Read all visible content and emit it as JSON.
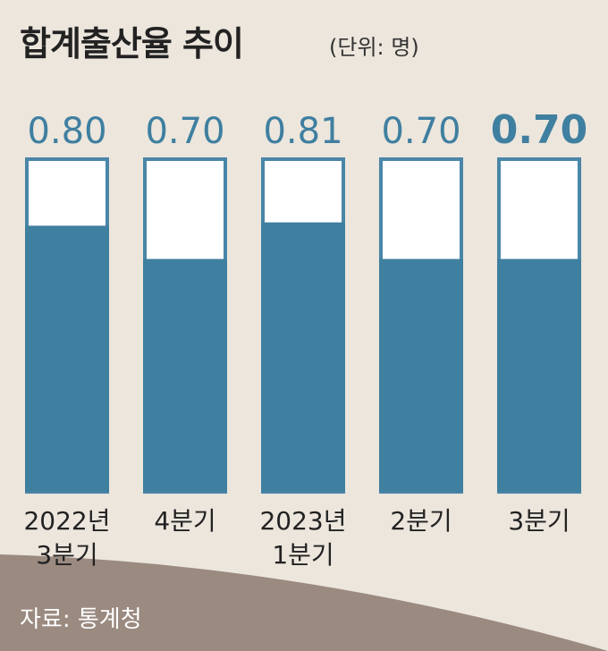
{
  "header": {
    "title": "합계출산율 추이",
    "unit": "(단위: 명)"
  },
  "footer": {
    "source": "자료: 통계청"
  },
  "colors": {
    "background": "#ece6dd",
    "bar_fill": "#3f7fa0",
    "bar_outline": "#4a86a8",
    "value_label": "#3f7fa0",
    "footer_bg": "#9a8a80"
  },
  "chart_data": {
    "type": "bar",
    "categories": [
      [
        "2022년",
        "3분기"
      ],
      [
        "4분기"
      ],
      [
        "2023년",
        "1분기"
      ],
      [
        "2분기"
      ],
      [
        "3분기"
      ]
    ],
    "values": [
      0.8,
      0.7,
      0.81,
      0.7,
      0.7
    ],
    "value_labels": [
      "0.80",
      "0.70",
      "0.81",
      "0.70",
      "0.70"
    ],
    "ylim": [
      0,
      1.0
    ],
    "grid": false
  }
}
